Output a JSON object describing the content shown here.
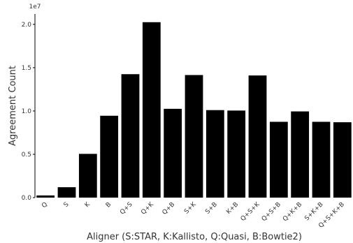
{
  "chart_data": {
    "type": "bar",
    "title": "",
    "xlabel": "Aligner (S:STAR, K:Kallisto, Q:Quasi, B:Bowtie2)",
    "ylabel": "Agreement Count",
    "y_offset_label": "1e7",
    "ylim": [
      0,
      2.12
    ],
    "yticks": [
      "0.0",
      "0.5",
      "1.0",
      "1.5",
      "2.0"
    ],
    "ytick_values": [
      0.0,
      0.5,
      1.0,
      1.5,
      2.0
    ],
    "categories": [
      "Q",
      "S",
      "K",
      "B",
      "Q+S",
      "Q+K",
      "Q+B",
      "S+K",
      "S+B",
      "K+B",
      "Q+S+K",
      "Q+S+B",
      "Q+K+B",
      "S+K+B",
      "Q+S+K+B"
    ],
    "values": [
      0.025,
      0.12,
      0.505,
      0.945,
      1.425,
      2.025,
      1.025,
      1.415,
      1.01,
      1.005,
      1.41,
      0.875,
      0.995,
      0.875,
      0.87
    ],
    "bar_color": "#000000",
    "grid": false,
    "legend": "none"
  }
}
